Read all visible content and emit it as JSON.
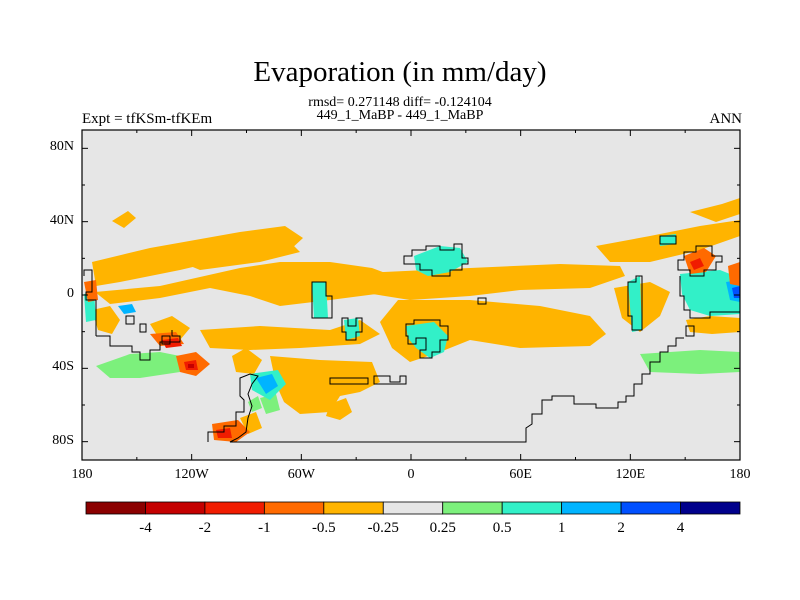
{
  "title": "Evaporation (in mm/day)",
  "stats_line": "rmsd= 0.271148 diff= -0.124104",
  "cases_line": "449_1_MaBP - 449_1_MaBP",
  "expt_label": "Expt = tfKSm-tfKEm",
  "season_label": "ANN",
  "map": {
    "projection": "cylindrical equidistant",
    "lon_range": [
      -180,
      180
    ],
    "lat_range": [
      -90,
      90
    ],
    "background_color": "#e6e6e6",
    "x_ticks": [
      {
        "value": -180,
        "label": "180"
      },
      {
        "value": -120,
        "label": "120W"
      },
      {
        "value": -60,
        "label": "60W"
      },
      {
        "value": 0,
        "label": "0"
      },
      {
        "value": 60,
        "label": "60E"
      },
      {
        "value": 120,
        "label": "120E"
      },
      {
        "value": 180,
        "label": "180"
      }
    ],
    "y_ticks": [
      {
        "value": 80,
        "label": "80N"
      },
      {
        "value": 40,
        "label": "40N"
      },
      {
        "value": 0,
        "label": "0"
      },
      {
        "value": -40,
        "label": "40S"
      },
      {
        "value": -80,
        "label": "80S"
      }
    ]
  },
  "colorbar": {
    "colors": [
      "#8b0000",
      "#c40000",
      "#f01c00",
      "#ff6a00",
      "#ffb400",
      "#e6e6e6",
      "#7cf07c",
      "#32f0c8",
      "#00b4ff",
      "#0050ff",
      "#00008c"
    ],
    "labels": [
      "-4",
      "-2",
      "-1",
      "-0.5",
      "-0.25",
      "0.25",
      "0.5",
      "1",
      "2",
      "4"
    ]
  }
}
